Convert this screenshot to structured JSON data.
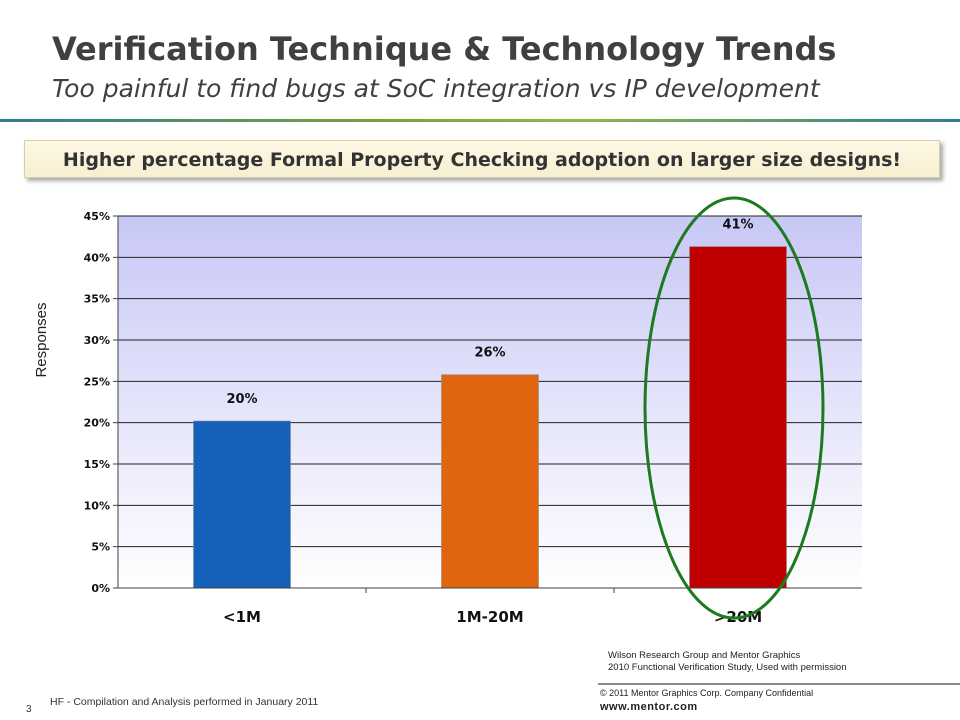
{
  "slide": {
    "title": "Verification Technique & Technology Trends",
    "subtitle": "Too painful to find bugs at SoC integration vs IP development",
    "callout": "Higher percentage Formal Property Checking adoption on larger size designs!",
    "source_line1": "Wilson Research Group and Mentor Graphics",
    "source_line2": "2010 Functional Verification Study,  Used with permission",
    "copyright": "© 2011 Mentor Graphics Corp. Company Confidential",
    "url": "www.mentor.com",
    "page_number": "3",
    "footnote": "HF - Compilation and Analysis performed in January 2011"
  },
  "chart_data": {
    "type": "bar",
    "categories": [
      "<1M",
      "1M-20M",
      ">20M"
    ],
    "values": [
      20.2,
      25.8,
      41.3
    ],
    "data_labels": [
      "20%",
      "26%",
      "41%"
    ],
    "colors": [
      "#1560b8",
      "#e0650e",
      "#c00000"
    ],
    "ylabel": "Responses",
    "xlabel": "",
    "ylim": [
      0,
      45
    ],
    "y_ticks": [
      0,
      5,
      10,
      15,
      20,
      25,
      30,
      35,
      40,
      45
    ],
    "y_tick_labels": [
      "0%",
      "5%",
      "10%",
      "15%",
      "20%",
      "25%",
      "30%",
      "35%",
      "40%",
      "45%"
    ],
    "grid": true,
    "highlight": {
      "category": ">20M",
      "shape": "ellipse",
      "color": "#1e7a1e"
    }
  }
}
